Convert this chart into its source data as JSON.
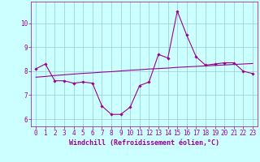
{
  "x": [
    0,
    1,
    2,
    3,
    4,
    5,
    6,
    7,
    8,
    9,
    10,
    11,
    12,
    13,
    14,
    15,
    16,
    17,
    18,
    19,
    20,
    21,
    22,
    23
  ],
  "y_data": [
    8.1,
    8.3,
    7.6,
    7.6,
    7.5,
    7.55,
    7.5,
    6.55,
    6.2,
    6.2,
    6.5,
    7.4,
    7.55,
    8.7,
    8.55,
    10.5,
    9.5,
    8.6,
    8.25,
    8.3,
    8.35,
    8.35,
    8.0,
    7.9
  ],
  "y_trend": [
    7.75,
    7.78,
    7.82,
    7.85,
    7.88,
    7.91,
    7.93,
    7.96,
    7.98,
    8.01,
    8.04,
    8.06,
    8.09,
    8.11,
    8.13,
    8.16,
    8.18,
    8.2,
    8.22,
    8.24,
    8.26,
    8.28,
    8.3,
    8.32
  ],
  "line_color": "#990099",
  "bg_color": "#ccffff",
  "xlabel": "Windchill (Refroidissement éolien,°C)",
  "yticks": [
    6,
    7,
    8,
    9,
    10
  ],
  "xticks": [
    0,
    1,
    2,
    3,
    4,
    5,
    6,
    7,
    8,
    9,
    10,
    11,
    12,
    13,
    14,
    15,
    16,
    17,
    18,
    19,
    20,
    21,
    22,
    23
  ],
  "ylim": [
    5.7,
    10.9
  ],
  "xlim": [
    -0.5,
    23.5
  ],
  "xlabel_fontsize": 6.0,
  "tick_fontsize": 5.5
}
